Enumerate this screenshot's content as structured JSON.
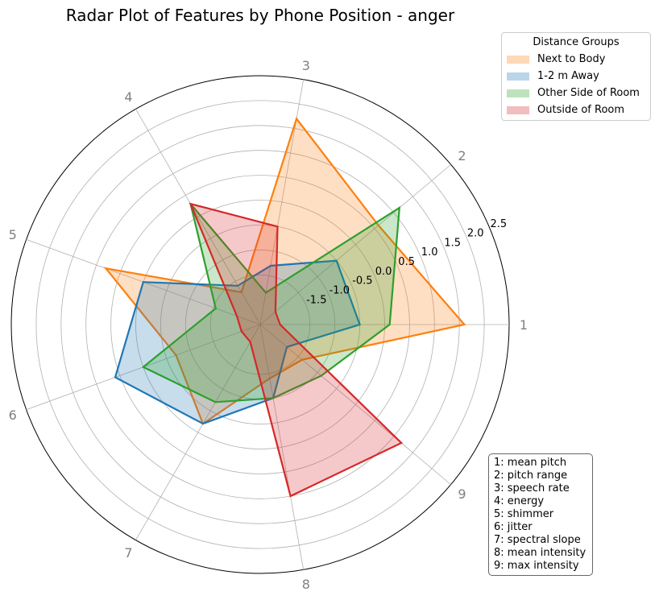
{
  "chart_data": {
    "type": "radar",
    "title": "Radar Plot of Features by Phone Position - anger",
    "axis_labels": [
      "1",
      "2",
      "3",
      "4",
      "5",
      "6",
      "7",
      "8",
      "9"
    ],
    "radial_range": [
      -2.5,
      2.5
    ],
    "radial_ticks": [
      "-1.5",
      "-1.0",
      "-0.5",
      "0.0",
      "0.5",
      "1.0",
      "1.5",
      "2.0",
      "2.5"
    ],
    "radial_tick_values": [
      -1.5,
      -1.0,
      -0.5,
      0.0,
      0.5,
      1.0,
      1.5,
      2.0,
      2.5
    ],
    "grid": true,
    "legend_title": "Distance Groups",
    "legend_placement": "top-right outside",
    "series": [
      {
        "name": "Next to Body",
        "color": "#ff7f0e",
        "values": [
          1.6,
          0.6,
          1.7,
          -1.75,
          0.8,
          -0.7,
          -0.2,
          -1.4,
          -1.4
        ]
      },
      {
        "name": "1-2 m Away",
        "color": "#1f77b4",
        "values": [
          -0.5,
          -0.5,
          -1.3,
          -1.6,
          0.0,
          0.6,
          -0.2,
          -1.0,
          -1.8
        ]
      },
      {
        "name": "Other Side of Room",
        "color": "#2ca02c",
        "values": [
          0.1,
          1.15,
          -1.85,
          0.3,
          -1.55,
          0.0,
          -0.7,
          -1.0,
          -0.9
        ]
      },
      {
        "name": "Outside of Room",
        "color": "#d62728",
        "values": [
          -2.1,
          -2.1,
          -0.5,
          0.3,
          -2.0,
          -2.1,
          -2.1,
          1.0,
          1.2
        ]
      }
    ],
    "feature_key": [
      "1: mean pitch",
      "2: pitch range",
      "3: speech rate",
      "4: energy",
      "5: shimmer",
      "6: jitter",
      "7: spectral slope",
      "8: mean intensity",
      "9: max intensity"
    ]
  }
}
